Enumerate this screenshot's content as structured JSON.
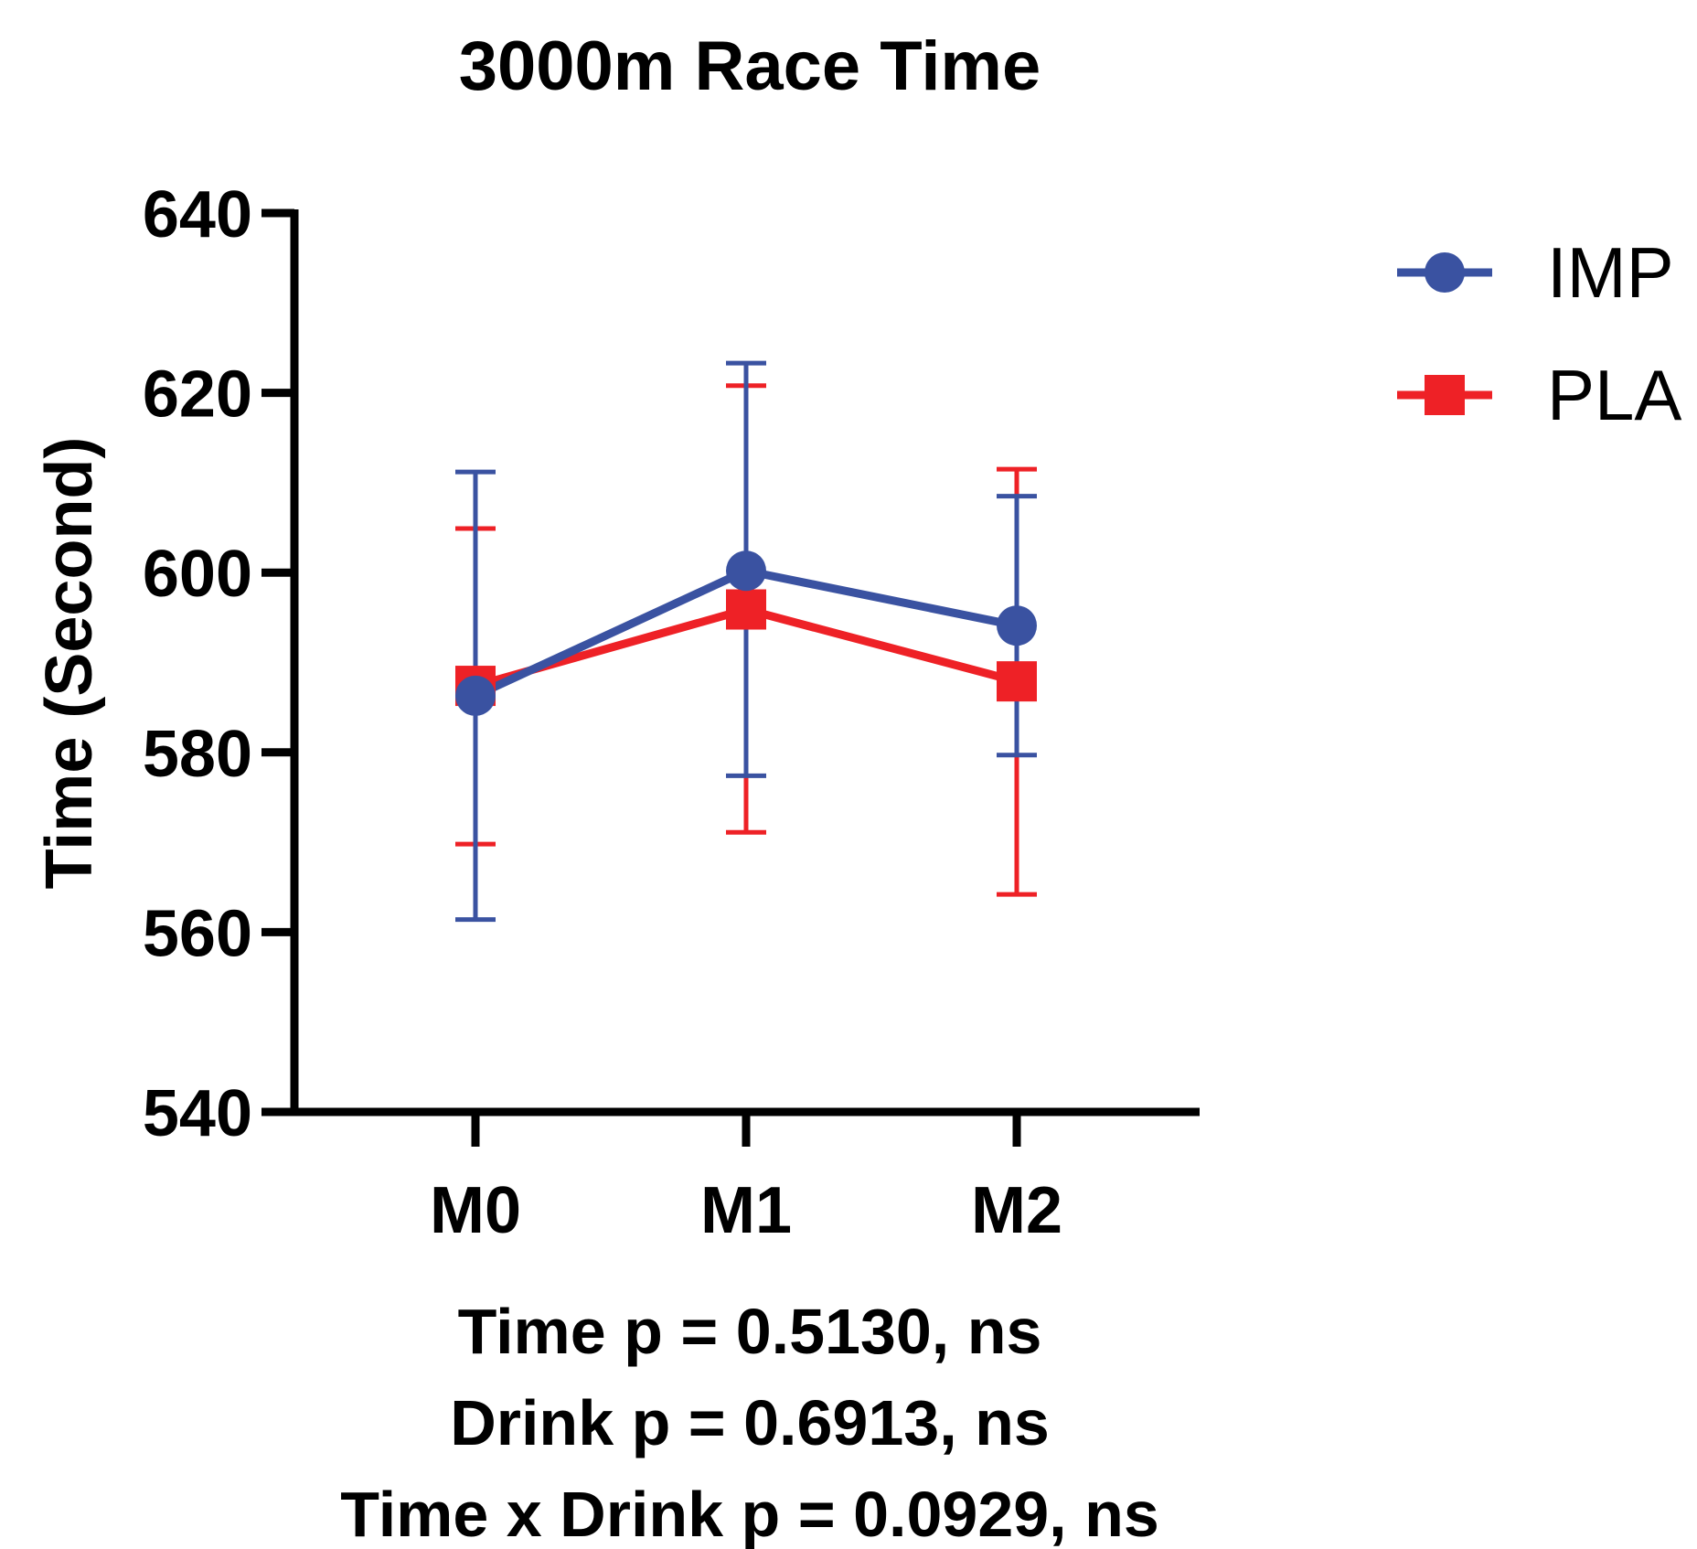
{
  "chart_data": {
    "type": "line",
    "title": "3000m Race Time",
    "xlabel": "",
    "ylabel": "Time (Second)",
    "categories": [
      "M0",
      "M1",
      "M2"
    ],
    "ylim": [
      540,
      640
    ],
    "yticks": [
      540,
      560,
      580,
      600,
      620,
      640
    ],
    "series": [
      {
        "name": "IMP",
        "color": "#3a52a1",
        "marker": "circle",
        "values": [
          586.3,
          600.2,
          594.1
        ],
        "err_low": [
          561.4,
          577.4,
          579.7
        ],
        "err_high": [
          611.2,
          623.3,
          608.5
        ]
      },
      {
        "name": "PLA",
        "color": "#ee2126",
        "marker": "square",
        "values": [
          587.4,
          595.9,
          587.9
        ],
        "err_low": [
          569.8,
          571.1,
          564.2
        ],
        "err_high": [
          604.9,
          620.8,
          611.5
        ]
      }
    ],
    "stats": [
      "Time p = 0.5130, ns",
      "Drink p = 0.6913, ns",
      "Time x Drink p = 0.0929, ns"
    ]
  }
}
